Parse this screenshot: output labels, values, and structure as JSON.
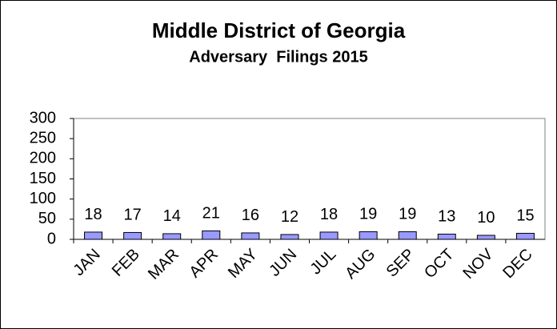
{
  "chart_data": {
    "type": "bar",
    "title": "Middle District of Georgia",
    "subtitle": "Adversary  Filings 2015",
    "categories": [
      "JAN",
      "FEB",
      "MAR",
      "APR",
      "MAY",
      "JUN",
      "JUL",
      "AUG",
      "SEP",
      "OCT",
      "NOV",
      "DEC"
    ],
    "values": [
      18,
      17,
      14,
      21,
      16,
      12,
      18,
      19,
      19,
      13,
      10,
      15
    ],
    "color": "#9999ff",
    "ylim": [
      0,
      300
    ],
    "yticks": [
      0,
      50,
      100,
      150,
      200,
      250,
      300
    ],
    "grid": false
  }
}
